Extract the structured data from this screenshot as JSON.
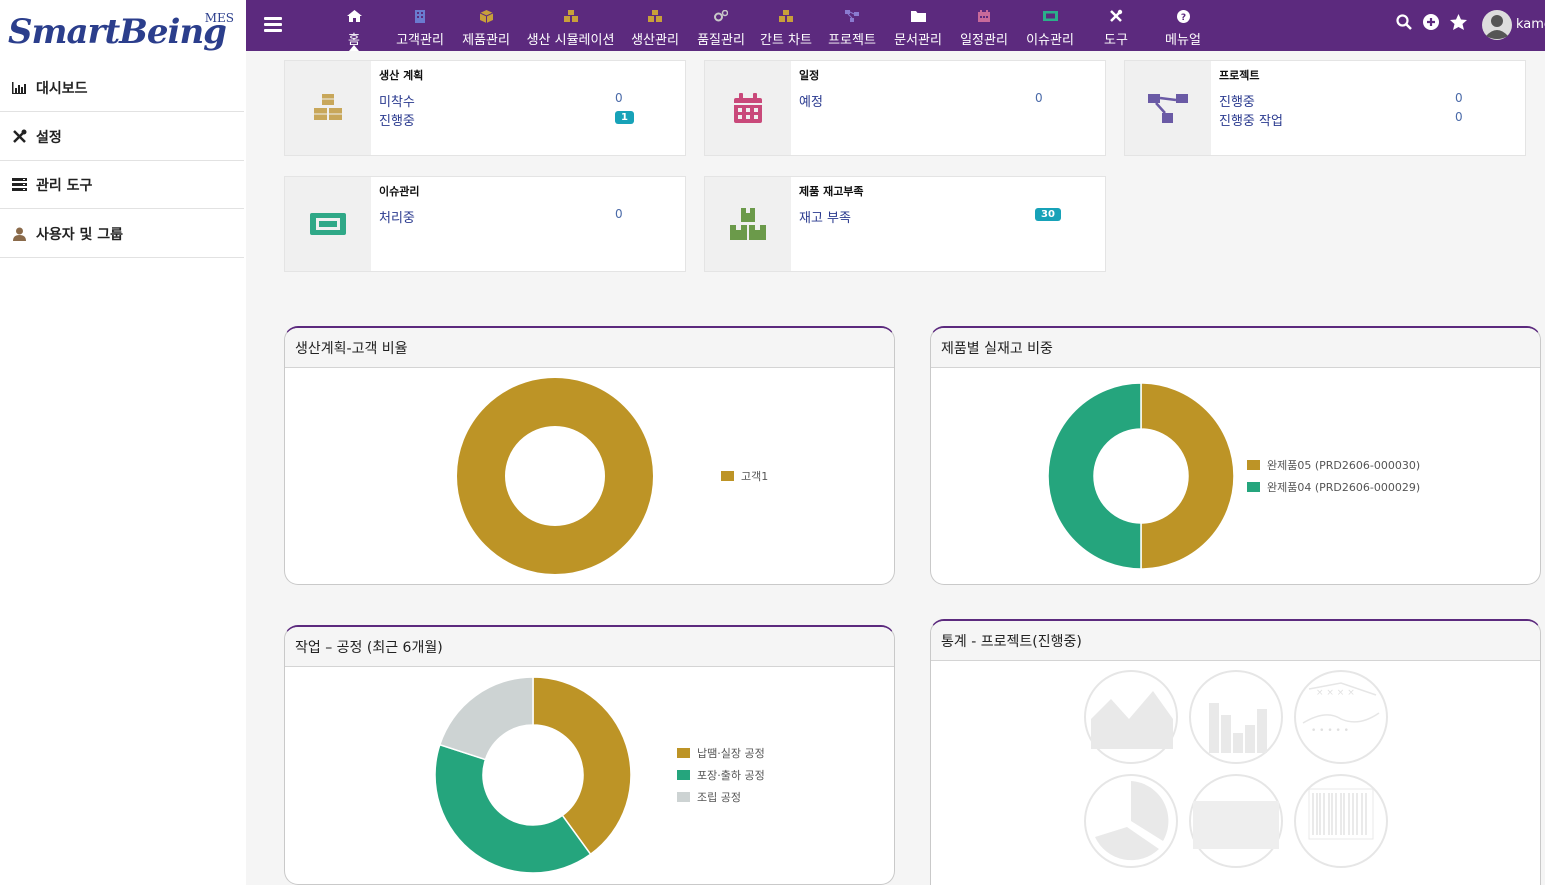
{
  "logo": {
    "brand": "SmartBeing",
    "suffix": "MES"
  },
  "sidebar": {
    "items": [
      {
        "label": "대시보드",
        "icon": "bar-chart-icon"
      },
      {
        "label": "설정",
        "icon": "tools-icon"
      },
      {
        "label": "관리 도구",
        "icon": "server-icon"
      },
      {
        "label": "사용자 및 그룹",
        "icon": "user-icon"
      }
    ]
  },
  "topnav": {
    "items": [
      {
        "label": "홈",
        "icon": "home-icon",
        "color": "#ffffff",
        "active": true
      },
      {
        "label": "고객관리",
        "icon": "building-icon",
        "color": "#6a7bd0"
      },
      {
        "label": "제품관리",
        "icon": "cube-icon",
        "color": "#c8a03a"
      },
      {
        "label": "생산 시뮬레이션",
        "icon": "cubes-icon",
        "color": "#c8a03a"
      },
      {
        "label": "생산관리",
        "icon": "cubes-icon",
        "color": "#c8a03a"
      },
      {
        "label": "품질관리",
        "icon": "cogs-icon",
        "color": "#c9c9c9"
      },
      {
        "label": "간트 차트",
        "icon": "cubes-icon",
        "color": "#c8a03a"
      },
      {
        "label": "프로젝트",
        "icon": "sitemap-icon",
        "color": "#8a7bd0"
      },
      {
        "label": "문서관리",
        "icon": "folder-icon",
        "color": "#ffffff"
      },
      {
        "label": "일정관리",
        "icon": "calendar-icon",
        "color": "#c86a9a"
      },
      {
        "label": "이슈관리",
        "icon": "ticket-icon",
        "color": "#2bb08a"
      },
      {
        "label": "도구",
        "icon": "tools-icon",
        "color": "#ffffff"
      },
      {
        "label": "메뉴얼",
        "icon": "question-icon",
        "color": "#ffffff"
      }
    ],
    "user_name": "kame"
  },
  "cards": [
    {
      "title": "생산 계획",
      "icon": "cubes-icon",
      "icon_color": "#c8a75a",
      "rows": [
        {
          "label": "미착수",
          "value": "0"
        },
        {
          "label": "진행중",
          "value": "1",
          "badge": true
        }
      ]
    },
    {
      "title": "일정",
      "icon": "calendar-icon",
      "icon_color": "#c9497a",
      "rows": [
        {
          "label": "예정",
          "value": "0"
        }
      ]
    },
    {
      "title": "프로젝트",
      "icon": "sitemap-icon",
      "icon_color": "#6a5aa5",
      "rows": [
        {
          "label": "진행중",
          "value": "0"
        },
        {
          "label": "진행중 작업",
          "value": "0"
        }
      ]
    },
    {
      "title": "이슈관리",
      "icon": "ticket-icon",
      "icon_color": "#2fa887",
      "rows": [
        {
          "label": "처리중",
          "value": "0"
        }
      ]
    },
    {
      "title": "제품 재고부족",
      "icon": "boxes-icon",
      "icon_color": "#6b9a4a",
      "rows": [
        {
          "label": "재고 부족",
          "value": "30",
          "badge": true
        }
      ]
    }
  ],
  "panels": {
    "p1": {
      "title": "생산계획-고객 비율"
    },
    "p2": {
      "title": "제품별 실재고 비중"
    },
    "p3": {
      "title": "작업 – 공정 (최근 6개월)"
    },
    "p4": {
      "title": "통계 - 프로젝트(진행중)"
    }
  },
  "chart_data": [
    {
      "type": "pie",
      "title": "생산계획-고객 비율",
      "labels": [
        "고객1"
      ],
      "values": [
        100
      ],
      "colors": [
        "#bd9426"
      ],
      "legend": "right"
    },
    {
      "type": "pie",
      "title": "제품별 실재고 비중",
      "labels": [
        "완제품05 (PRD2606-000030)",
        "완제품04 (PRD2606-000029)"
      ],
      "values": [
        50,
        50
      ],
      "colors": [
        "#bd9426",
        "#25a57d"
      ],
      "legend": "right"
    },
    {
      "type": "pie",
      "title": "작업 – 공정 (최근 6개월)",
      "labels": [
        "납땜·실장 공정",
        "포장·출하 공정",
        "조립 공정"
      ],
      "values": [
        40,
        40,
        20
      ],
      "colors": [
        "#bd9426",
        "#25a57d",
        "#cdd3d3"
      ],
      "legend": "right"
    }
  ]
}
